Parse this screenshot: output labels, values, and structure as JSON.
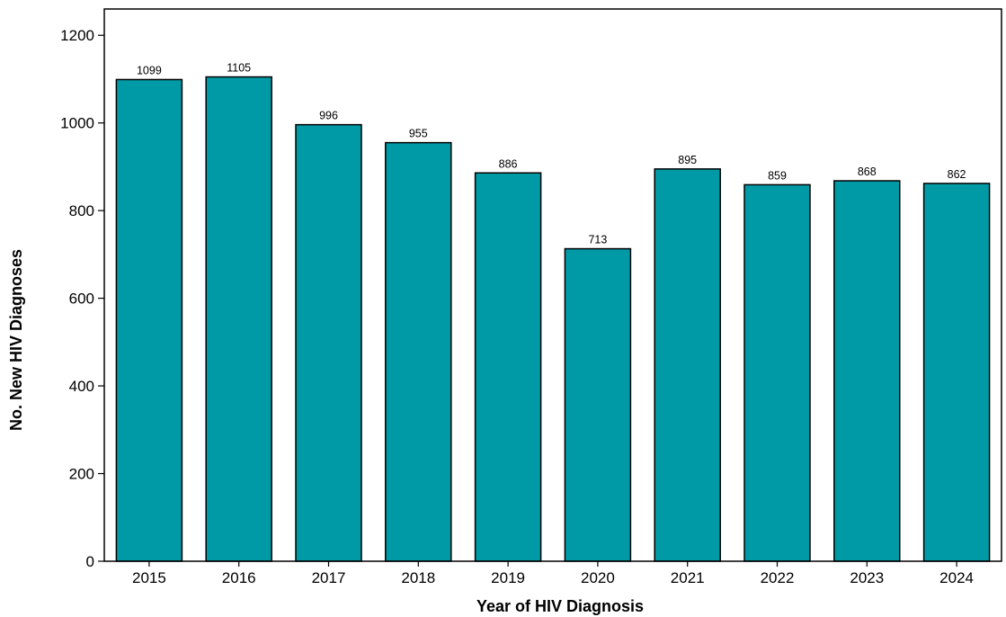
{
  "chart_data": {
    "type": "bar",
    "title": "",
    "xlabel": "Year of HIV Diagnosis",
    "ylabel": "No. New HIV Diagnoses",
    "categories": [
      "2015",
      "2016",
      "2017",
      "2018",
      "2019",
      "2020",
      "2021",
      "2022",
      "2023",
      "2024"
    ],
    "values": [
      1099,
      1105,
      996,
      955,
      886,
      713,
      895,
      859,
      868,
      862
    ],
    "data_labels": [
      "1099",
      "1105",
      "996",
      "955",
      "886",
      "713",
      "895",
      "859",
      "868",
      "862"
    ],
    "ylim": [
      0,
      1260
    ],
    "yticks": [
      0,
      200,
      400,
      600,
      800,
      1000,
      1200
    ],
    "ytick_labels": [
      "0",
      "200",
      "400",
      "600",
      "800",
      "1000",
      "1200"
    ],
    "bar_color": "#009aa6",
    "bar_edge_color": "#000000",
    "grid": false,
    "legend": "none"
  }
}
